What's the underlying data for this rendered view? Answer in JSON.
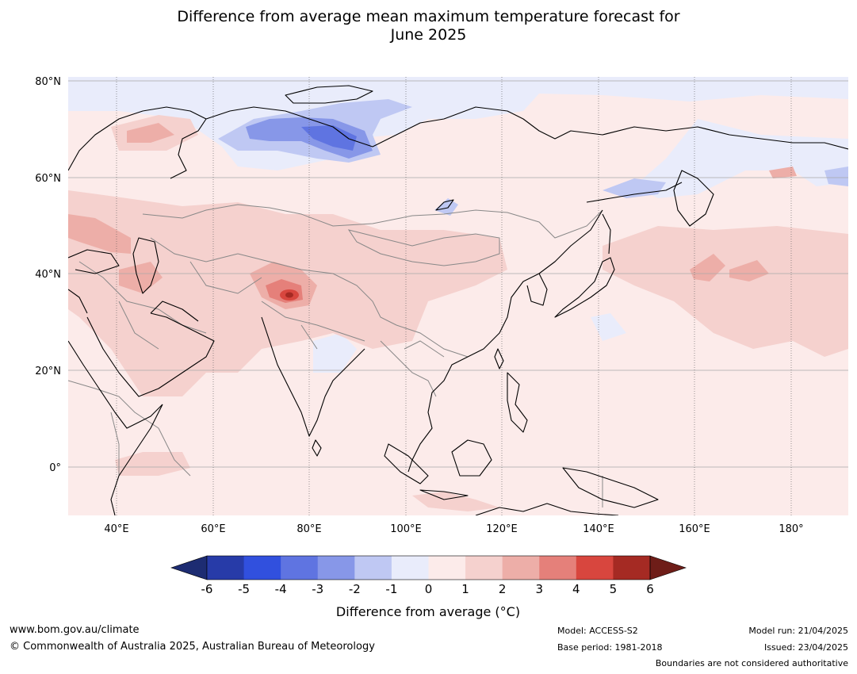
{
  "title": {
    "line1": "Difference from average mean maximum temperature forecast for",
    "line2": "June 2025"
  },
  "map": {
    "lat_labels": [
      "80°N",
      "60°N",
      "40°N",
      "20°N",
      "0°"
    ],
    "lon_labels": [
      "40°E",
      "60°E",
      "80°E",
      "100°E",
      "120°E",
      "140°E",
      "160°E",
      "180°"
    ],
    "background_color": "#fcebea",
    "coastline_color": "#000000",
    "border_color": "#888888"
  },
  "colorbar": {
    "label": "Difference from average (°C)",
    "ticks": [
      "-6",
      "-5",
      "-4",
      "-3",
      "-2",
      "-1",
      "0",
      "1",
      "2",
      "3",
      "4",
      "5",
      "6"
    ],
    "colors": [
      "#273ba8",
      "#3150de",
      "#5f74e1",
      "#8797e8",
      "#bfc8f3",
      "#e9ecfb",
      "#fcebea",
      "#f5d1ce",
      "#edaea8",
      "#e5807a",
      "#d8463e",
      "#a52a23"
    ],
    "under_color": "#1d2c72",
    "over_color": "#6e1d18"
  },
  "footer": {
    "website": "www.bom.gov.au/climate",
    "copyright": "© Commonwealth of Australia 2025, Australian Bureau of Meteorology",
    "model": "Model: ACCESS-S2",
    "base_period": "Base period: 1981-2018",
    "model_run": "Model run: 21/04/2025",
    "issued": "Issued: 23/04/2025",
    "disclaimer": "Boundaries are not considered authoritative"
  }
}
